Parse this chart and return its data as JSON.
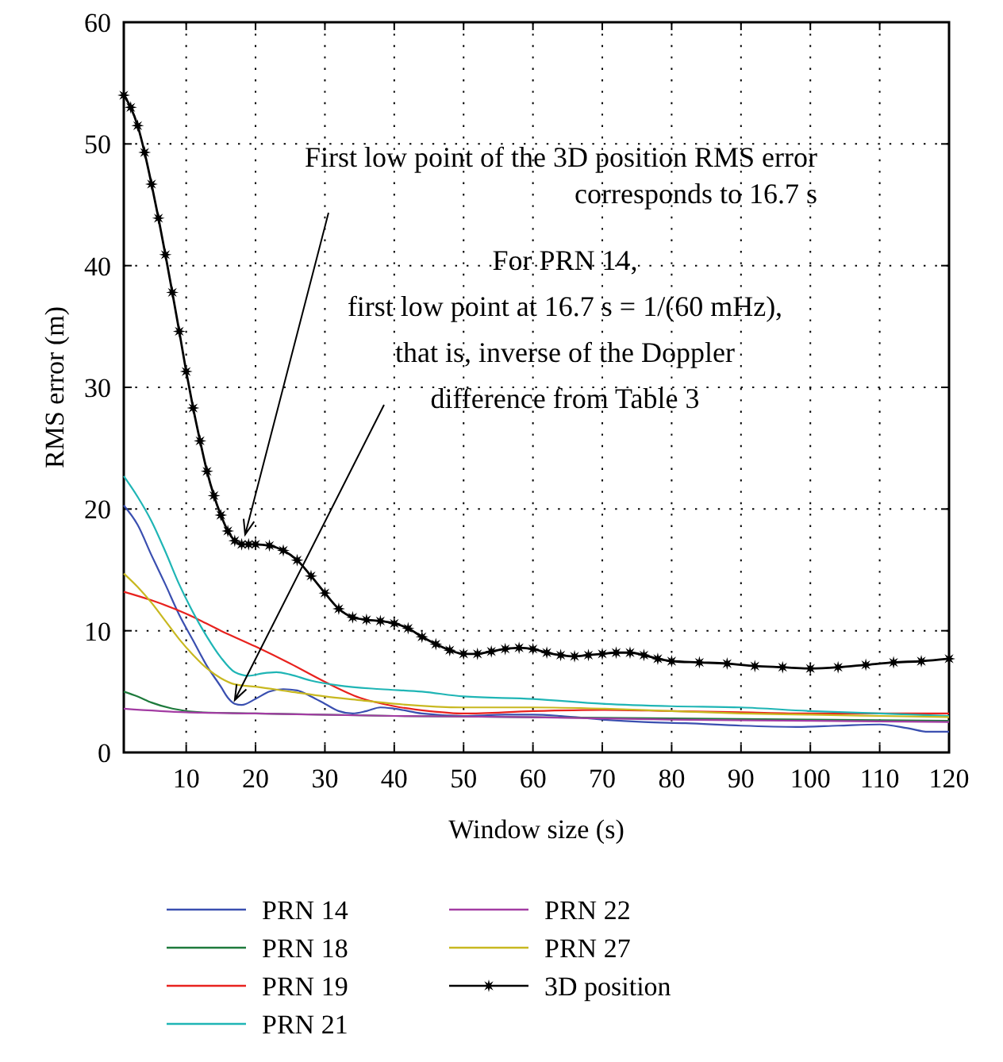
{
  "chart_data": {
    "type": "line",
    "xlabel": "Window size (s)",
    "ylabel": "RMS error (m)",
    "xlim": [
      1,
      120
    ],
    "ylim": [
      0,
      60
    ],
    "xticks": [
      10,
      20,
      30,
      40,
      50,
      60,
      70,
      80,
      90,
      100,
      110,
      120
    ],
    "yticks": [
      0,
      10,
      20,
      30,
      40,
      50,
      60
    ],
    "grid": true,
    "legend": "bottom",
    "line_style": "solid",
    "series": [
      {
        "name": "PRN 14",
        "color": "#3a4fb0",
        "marker": "none",
        "x": [
          1,
          3,
          5,
          7,
          9,
          11,
          13,
          15,
          16,
          17,
          18,
          20,
          22,
          24,
          26,
          28,
          30,
          32,
          34,
          36,
          38,
          40,
          44,
          50,
          56,
          60,
          64,
          70,
          76,
          82,
          90,
          98,
          104,
          110,
          114,
          117,
          120
        ],
        "values": [
          20.3,
          18.7,
          16.2,
          13.8,
          11.3,
          9.2,
          7.1,
          5.4,
          4.5,
          4.0,
          3.9,
          4.4,
          5.0,
          5.2,
          5.1,
          4.6,
          4.0,
          3.4,
          3.2,
          3.4,
          3.7,
          3.6,
          3.2,
          3.0,
          3.1,
          3.1,
          3.0,
          2.7,
          2.5,
          2.4,
          2.2,
          2.1,
          2.2,
          2.3,
          2.0,
          1.7,
          1.7
        ]
      },
      {
        "name": "PRN 18",
        "color": "#1e7a3c",
        "marker": "none",
        "x": [
          1,
          3,
          5,
          8,
          12,
          20,
          40,
          60,
          80,
          100,
          120
        ],
        "values": [
          5.0,
          4.6,
          4.1,
          3.6,
          3.3,
          3.2,
          3.0,
          2.9,
          2.8,
          2.7,
          2.6
        ]
      },
      {
        "name": "PRN 19",
        "color": "#e8221e",
        "marker": "none",
        "x": [
          1,
          5,
          10,
          15,
          20,
          25,
          30,
          35,
          40,
          45,
          50,
          60,
          70,
          80,
          90,
          100,
          110,
          120
        ],
        "values": [
          13.2,
          12.5,
          11.4,
          10.0,
          8.7,
          7.3,
          5.8,
          4.5,
          3.8,
          3.4,
          3.2,
          3.4,
          3.5,
          3.4,
          3.3,
          3.2,
          3.2,
          3.2
        ]
      },
      {
        "name": "PRN 21",
        "color": "#1fb5b5",
        "marker": "none",
        "x": [
          1,
          3,
          5,
          7,
          9,
          11,
          13,
          15,
          17,
          19,
          21,
          23,
          25,
          28,
          32,
          38,
          44,
          50,
          60,
          70,
          80,
          90,
          100,
          110,
          120
        ],
        "values": [
          22.7,
          21.0,
          19.0,
          16.5,
          13.8,
          11.5,
          9.5,
          7.8,
          6.6,
          6.3,
          6.5,
          6.6,
          6.4,
          5.9,
          5.5,
          5.2,
          5.0,
          4.6,
          4.4,
          4.0,
          3.8,
          3.7,
          3.4,
          3.2,
          3.0
        ]
      },
      {
        "name": "PRN 22",
        "color": "#a33ca3",
        "marker": "none",
        "x": [
          1,
          10,
          20,
          40,
          60,
          80,
          100,
          120
        ],
        "values": [
          3.6,
          3.3,
          3.2,
          3.0,
          2.9,
          2.7,
          2.6,
          2.5
        ]
      },
      {
        "name": "PRN 27",
        "color": "#c8b820",
        "marker": "none",
        "x": [
          1,
          3,
          5,
          7,
          9,
          11,
          13,
          15,
          17,
          20,
          25,
          30,
          35,
          40,
          50,
          60,
          70,
          80,
          90,
          100,
          110,
          120
        ],
        "values": [
          14.7,
          13.6,
          12.3,
          10.8,
          9.3,
          8.0,
          6.9,
          6.1,
          5.6,
          5.4,
          5.0,
          4.6,
          4.3,
          4.0,
          3.7,
          3.7,
          3.6,
          3.4,
          3.2,
          3.1,
          3.0,
          2.9
        ]
      },
      {
        "name": "3D position",
        "color": "#000000",
        "marker": "star",
        "x": [
          1,
          2,
          3,
          4,
          5,
          6,
          7,
          8,
          9,
          10,
          11,
          12,
          13,
          14,
          15,
          16,
          17,
          18,
          19,
          20,
          22,
          24,
          26,
          28,
          30,
          32,
          34,
          36,
          38,
          40,
          42,
          44,
          46,
          48,
          50,
          52,
          54,
          56,
          58,
          60,
          62,
          64,
          66,
          68,
          70,
          72,
          74,
          76,
          78,
          80,
          84,
          88,
          92,
          96,
          100,
          104,
          108,
          112,
          116,
          120
        ],
        "values": [
          54,
          53,
          51.5,
          49.3,
          46.7,
          43.9,
          40.9,
          37.8,
          34.6,
          31.3,
          28.3,
          25.6,
          23.1,
          21.1,
          19.5,
          18.2,
          17.4,
          17.1,
          17.1,
          17.1,
          17.0,
          16.6,
          15.8,
          14.5,
          13.1,
          11.8,
          11.1,
          10.9,
          10.8,
          10.6,
          10.2,
          9.5,
          8.9,
          8.4,
          8.1,
          8.1,
          8.3,
          8.5,
          8.6,
          8.5,
          8.2,
          8.0,
          7.9,
          8.0,
          8.1,
          8.2,
          8.2,
          8.0,
          7.7,
          7.5,
          7.4,
          7.3,
          7.1,
          7.0,
          6.9,
          7.0,
          7.2,
          7.4,
          7.5,
          7.7
        ]
      }
    ],
    "annotations": [
      {
        "text": "First low point of the 3D position RMS error\ncorresponds to 16.7 s",
        "x": 18.5,
        "y": 17.9
      },
      {
        "text": "For PRN 14,\nfirst low point at 16.7 s = 1/(60 mHz),\nthat is, inverse of the Doppler\ndifference from Table 3",
        "x": 17,
        "y": 4.3
      }
    ]
  }
}
